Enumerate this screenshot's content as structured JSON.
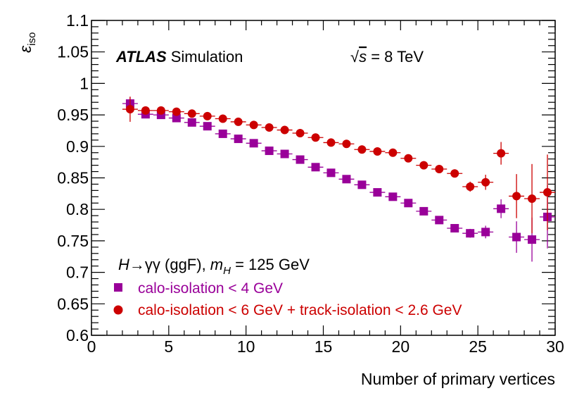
{
  "chart_data": {
    "type": "scatter",
    "ylabel": "ε",
    "ylabel_sub": "iso",
    "xlabel": "Number of primary vertices",
    "xlim": [
      0,
      30
    ],
    "ylim": [
      0.6,
      1.1
    ],
    "xticks": [
      0,
      5,
      10,
      15,
      20,
      25,
      30
    ],
    "yticks": [
      0.6,
      0.65,
      0.7,
      0.75,
      0.8,
      0.85,
      0.9,
      0.95,
      1,
      1.05,
      1.1
    ],
    "xtick_labels": [
      "0",
      "5",
      "10",
      "15",
      "20",
      "25",
      "30"
    ],
    "ytick_labels": [
      "0.6",
      "0.65",
      "0.7",
      "0.75",
      "0.8",
      "0.85",
      "0.9",
      "0.95",
      "1",
      "1.05",
      "1.1"
    ],
    "annotations": {
      "atlas": "ATLAS",
      "simulation": "Simulation",
      "sqrt_symbol": "√",
      "energy_s": "s",
      "energy_value": " = 8 TeV",
      "process_h": "H",
      "process_arrow": "→γγ (ggF), ",
      "process_m": "m",
      "process_msub": "H",
      "process_mass": " = 125 GeV"
    },
    "series": [
      {
        "name": "calo-isolation < 4 GeV",
        "color": "#990099",
        "marker": "square",
        "x": [
          2.5,
          3.5,
          4.5,
          5.5,
          6.5,
          7.5,
          8.5,
          9.5,
          10.5,
          11.5,
          12.5,
          13.5,
          14.5,
          15.5,
          16.5,
          17.5,
          18.5,
          19.5,
          20.5,
          21.5,
          22.5,
          23.5,
          24.5,
          25.5,
          26.5,
          27.5,
          28.5,
          29.5
        ],
        "y": [
          0.968,
          0.951,
          0.95,
          0.945,
          0.938,
          0.932,
          0.92,
          0.912,
          0.905,
          0.893,
          0.888,
          0.879,
          0.867,
          0.858,
          0.848,
          0.839,
          0.827,
          0.82,
          0.81,
          0.797,
          0.783,
          0.77,
          0.762,
          0.764,
          0.801,
          0.756,
          0.752,
          0.788
        ],
        "yerr": [
          0.01,
          0.006,
          0.005,
          0.004,
          0.004,
          0.003,
          0.003,
          0.003,
          0.003,
          0.003,
          0.003,
          0.003,
          0.003,
          0.003,
          0.003,
          0.003,
          0.003,
          0.004,
          0.004,
          0.004,
          0.005,
          0.005,
          0.007,
          0.01,
          0.015,
          0.025,
          0.035,
          0.05
        ]
      },
      {
        "name": "calo-isolation < 6 GeV + track-isolation < 2.6 GeV",
        "color": "#cc0000",
        "marker": "circle",
        "x": [
          2.5,
          3.5,
          4.5,
          5.5,
          6.5,
          7.5,
          8.5,
          9.5,
          10.5,
          11.5,
          12.5,
          13.5,
          14.5,
          15.5,
          16.5,
          17.5,
          18.5,
          19.5,
          20.5,
          21.5,
          22.5,
          23.5,
          24.5,
          25.5,
          26.5,
          27.5,
          28.5,
          29.5
        ],
        "y": [
          0.959,
          0.957,
          0.957,
          0.955,
          0.952,
          0.948,
          0.944,
          0.939,
          0.934,
          0.93,
          0.926,
          0.921,
          0.914,
          0.906,
          0.904,
          0.895,
          0.892,
          0.89,
          0.881,
          0.87,
          0.864,
          0.857,
          0.836,
          0.843,
          0.889,
          0.821,
          0.817,
          0.827
        ]
      }
    ],
    "errors_red": [
      0.02,
      0.005,
      0.004,
      0.003,
      0.003,
      0.003,
      0.003,
      0.003,
      0.003,
      0.003,
      0.003,
      0.003,
      0.003,
      0.003,
      0.003,
      0.003,
      0.003,
      0.004,
      0.004,
      0.004,
      0.005,
      0.005,
      0.008,
      0.012,
      0.018,
      0.035,
      0.055,
      0.06
    ]
  }
}
